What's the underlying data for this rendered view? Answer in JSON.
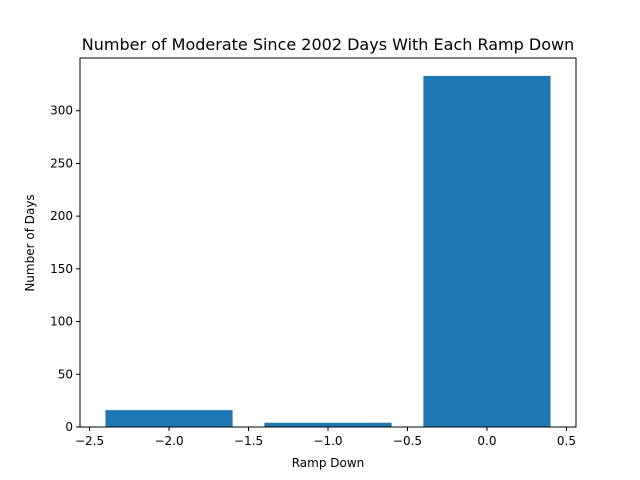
{
  "chart_data": {
    "type": "bar",
    "title": "Number of Moderate Since 2002 Days With Each Ramp Down",
    "xlabel": "Ramp Down",
    "ylabel": "Number of Days",
    "x": [
      -2,
      -1,
      0
    ],
    "values": [
      16,
      4,
      333
    ],
    "bar_width": 0.8,
    "xlim": [
      -2.56,
      0.56
    ],
    "ylim": [
      0,
      350
    ],
    "xticks": [
      -2.5,
      -2.0,
      -1.5,
      -1.0,
      -0.5,
      0.0,
      0.5
    ],
    "xtick_labels": [
      "−2.5",
      "−2.0",
      "−1.5",
      "−1.0",
      "−0.5",
      "0.0",
      "0.5"
    ],
    "yticks": [
      0,
      50,
      100,
      150,
      200,
      250,
      300
    ],
    "ytick_labels": [
      "0",
      "50",
      "100",
      "150",
      "200",
      "250",
      "300"
    ],
    "grid": false,
    "bar_color": "#1f77b4"
  }
}
